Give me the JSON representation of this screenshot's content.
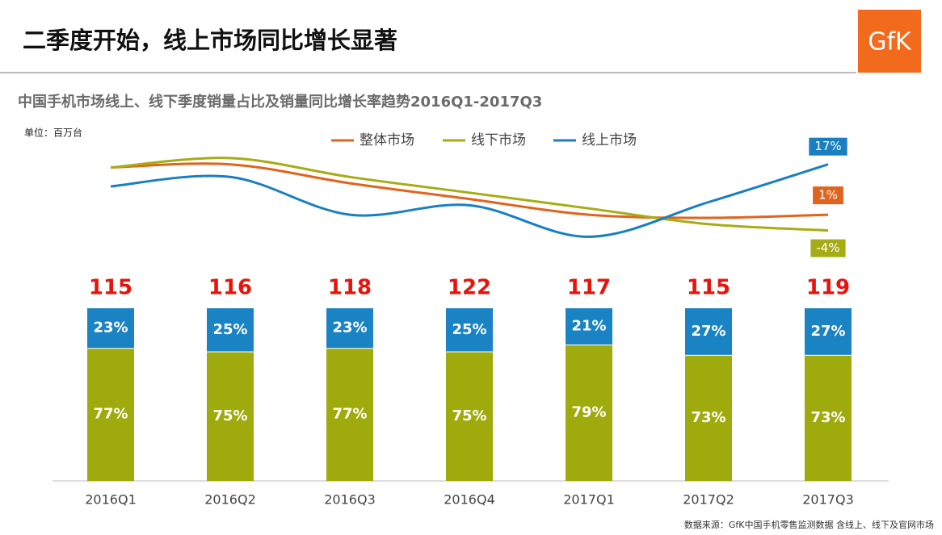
{
  "header": {
    "title": "二季度开始，线上市场同比增长显著",
    "logo": "GfK"
  },
  "chart_data": {
    "type": "bar",
    "title": "中国手机市场线上、线下季度销量占比及销量同比增长率趋势2016Q1-2017Q3",
    "unit": "单位：百万台",
    "source": "数据来源：GfK中国手机零售监测数据 含线上、线下及官网市场",
    "categories": [
      "2016Q1",
      "2016Q2",
      "2016Q3",
      "2016Q4",
      "2017Q1",
      "2017Q2",
      "2017Q3"
    ],
    "totals": [
      115,
      116,
      118,
      122,
      117,
      115,
      119
    ],
    "total_color": "#e8140c",
    "online": {
      "color": "#1a83c4",
      "values": [
        23,
        25,
        23,
        25,
        21,
        27,
        27
      ],
      "value_labels": [
        "23%",
        "25%",
        "23%",
        "25%",
        "21%",
        "27%",
        "27%"
      ]
    },
    "offline": {
      "color": "#9fab0d",
      "values": [
        77,
        75,
        77,
        75,
        79,
        73,
        73
      ],
      "value_labels": [
        "77%",
        "75%",
        "77%",
        "75%",
        "79%",
        "73%",
        "73%"
      ]
    },
    "lines": [
      {
        "name": "整体市场",
        "color": "#e0641e",
        "values": [
          16,
          17,
          11,
          6,
          1,
          0,
          1
        ],
        "value_labels": [
          null,
          null,
          null,
          null,
          null,
          null,
          "1%"
        ]
      },
      {
        "name": "线下市场",
        "color": "#a6ad14",
        "values": [
          16,
          19,
          13,
          8,
          3,
          -2,
          -4
        ],
        "value_labels": [
          null,
          null,
          null,
          null,
          null,
          null,
          "-4%"
        ]
      },
      {
        "name": "线上市场",
        "color": "#1a7fc1",
        "values": [
          10,
          13,
          1,
          4,
          -6,
          5,
          17
        ],
        "value_labels": [
          null,
          null,
          null,
          null,
          null,
          null,
          "17%"
        ]
      }
    ]
  }
}
